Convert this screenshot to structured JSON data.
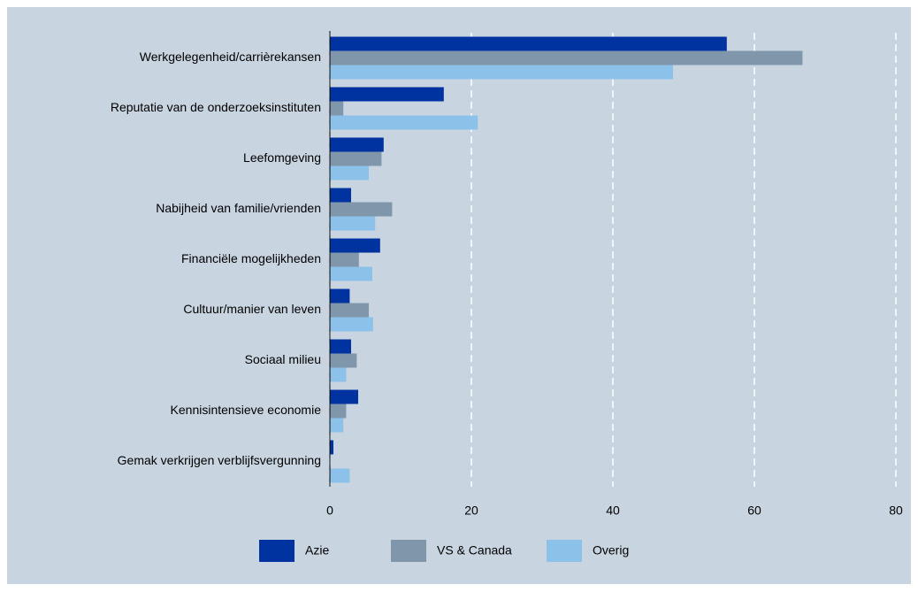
{
  "chart_data": {
    "type": "barh",
    "categories": [
      "Werkgelegenheid/carrièrekansen",
      "Reputatie van de onderzoeksinstituten",
      "Leefomgeving",
      "Nabijheid van familie/vrienden",
      "Financiële mogelijkheden",
      "Cultuur/manier van leven",
      "Sociaal milieu",
      "Kennisintensieve economie",
      "Gemak verkrijgen verblijfsvergunning"
    ],
    "series": [
      {
        "name": "Azie",
        "color": "#0033a0",
        "values": [
          56.1,
          16.1,
          7.6,
          3.0,
          7.1,
          2.8,
          3.0,
          4.0,
          0.5
        ]
      },
      {
        "name": "VS & Canada",
        "color": "#7f96ab",
        "values": [
          66.8,
          1.9,
          7.3,
          8.8,
          4.1,
          5.5,
          3.8,
          2.3,
          0
        ]
      },
      {
        "name": "Overig",
        "color": "#8cc1ea",
        "values": [
          48.5,
          20.9,
          5.5,
          6.4,
          6.0,
          6.1,
          2.3,
          1.9,
          2.8
        ]
      }
    ],
    "xlim": [
      0,
      80
    ],
    "xticks": [
      0,
      20,
      40,
      60,
      80
    ],
    "grid": true,
    "legend": "bottom"
  }
}
